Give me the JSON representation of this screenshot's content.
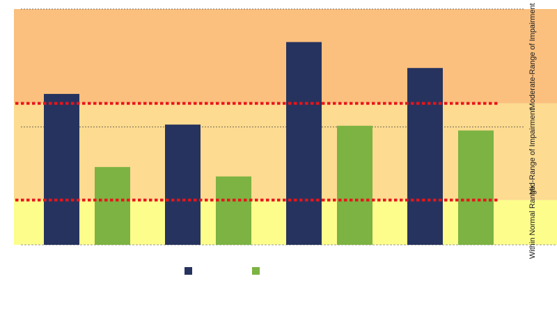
{
  "chart_data": {
    "type": "bar",
    "categories": [
      "",
      "",
      "",
      ""
    ],
    "series": [
      {
        "values": [
          6.4,
          5.1,
          8.6,
          7.5
        ],
        "color": "#26335e"
      },
      {
        "values": [
          3.3,
          2.9,
          5.05,
          4.85
        ],
        "color": "#7cb342"
      }
    ],
    "ylim": [
      0,
      10
    ],
    "grid": "dashed lines at 5 and 10",
    "zones": [
      {
        "label": "Within Normal Range",
        "from": 0,
        "to": 1.9,
        "color": "#fdfd8c"
      },
      {
        "label": "Mid-Range of Impairment",
        "from": 1.9,
        "to": 6,
        "color": "#fddb90"
      },
      {
        "label": "Moderate-Range of Impairment",
        "from": 6,
        "to": 10,
        "color": "#fbc07e"
      }
    ],
    "thresholds": [
      1.9,
      6
    ],
    "threshold_color": "#e8141a",
    "legend_position": "bottom"
  }
}
